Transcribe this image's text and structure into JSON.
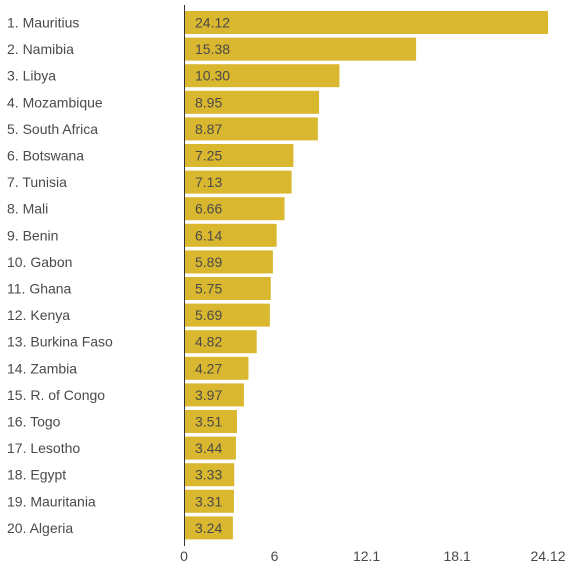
{
  "chart_data": {
    "type": "bar",
    "orientation": "horizontal",
    "title": "",
    "xlabel": "",
    "ylabel": "",
    "categories": [
      "1. Mauritius",
      "2. Namibia",
      "3. Libya",
      "4. Mozambique",
      "5. South Africa",
      "6. Botswana",
      "7. Tunisia",
      "8. Mali",
      "9. Benin",
      "10. Gabon",
      "11. Ghana",
      "12. Kenya",
      "13. Burkina Faso",
      "14. Zambia",
      "15. R. of Congo",
      "16. Togo",
      "17. Lesotho",
      "18. Egypt",
      "19. Mauritania",
      "20. Algeria"
    ],
    "values": [
      24.12,
      15.38,
      10.3,
      8.95,
      8.87,
      7.25,
      7.13,
      6.66,
      6.14,
      5.89,
      5.75,
      5.69,
      4.82,
      4.27,
      3.97,
      3.51,
      3.44,
      3.33,
      3.31,
      3.24
    ],
    "value_labels": [
      "24.12",
      "15.38",
      "10.30",
      "8.95",
      "8.87",
      "7.25",
      "7.13",
      "6.66",
      "6.14",
      "5.89",
      "5.75",
      "5.69",
      "4.82",
      "4.27",
      "3.97",
      "3.51",
      "3.44",
      "3.33",
      "3.31",
      "3.24"
    ],
    "xlim": [
      0,
      24.12
    ],
    "xticks": [
      0,
      6,
      12.1,
      18.1,
      24.12
    ],
    "xtick_labels": [
      "0",
      "6",
      "12.1",
      "18.1",
      "24.12"
    ],
    "grid": false,
    "legend": "none",
    "colors": {
      "bar": "#d9b72e",
      "axis": "#333333",
      "text": "#4a4a4a"
    }
  }
}
